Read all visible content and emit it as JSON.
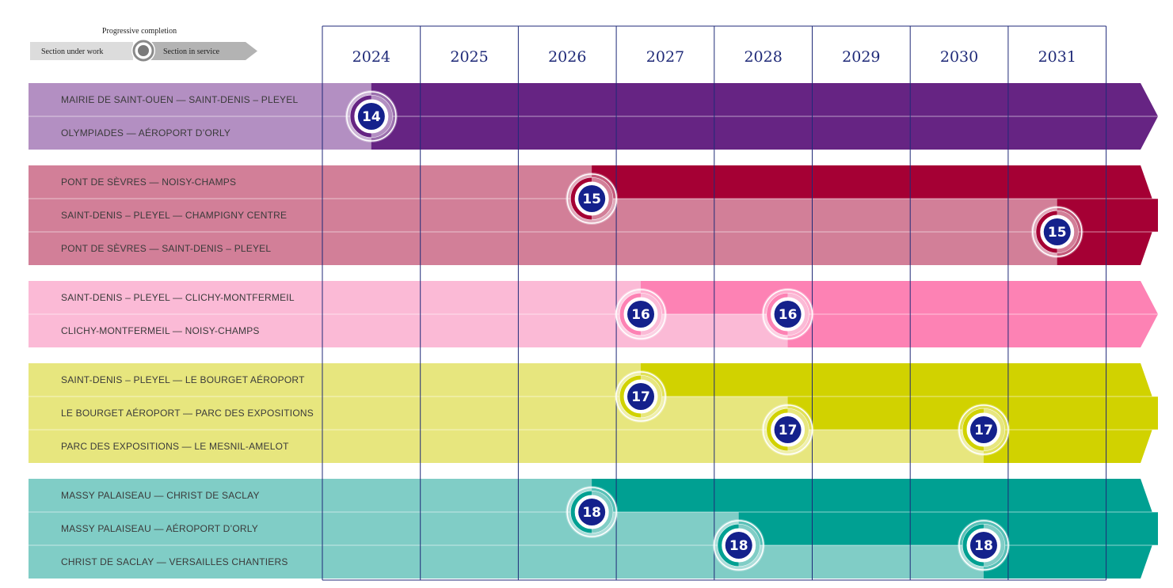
{
  "legend": {
    "title": "Progressive completion",
    "under_work": "Section under work",
    "in_service": "Section in service"
  },
  "chart_data": {
    "type": "table",
    "title": "",
    "years": [
      "2024",
      "2025",
      "2026",
      "2027",
      "2028",
      "2029",
      "2030",
      "2031"
    ],
    "lines": [
      {
        "line": "14",
        "color_light": "#b38fc2",
        "color_dark": "#662483",
        "sections": [
          {
            "label": "MAIRIE DE SAINT-OUEN  —  SAINT-DENIS – PLEYEL",
            "service_year": 2024.0
          },
          {
            "label": "OLYMPIADES  —  AÉROPORT D’ORLY",
            "service_year": 2024.0
          }
        ],
        "markers": [
          {
            "year": 2024.0,
            "rows": [
              0,
              1
            ]
          }
        ]
      },
      {
        "line": "15",
        "color_light": "#d27f98",
        "color_dark": "#a50034",
        "sections": [
          {
            "label": "PONT DE SÈVRES  —  NOISY-CHAMPS",
            "service_year": 2026.25
          },
          {
            "label": "SAINT-DENIS – PLEYEL  — CHAMPIGNY CENTRE",
            "service_year": 2031.0
          },
          {
            "label": "PONT DE SÈVRES  —  SAINT-DENIS – PLEYEL",
            "service_year": 2031.0
          }
        ],
        "markers": [
          {
            "year": 2026.25,
            "rows": [
              0,
              1
            ]
          },
          {
            "year": 2031.0,
            "rows": [
              1,
              2
            ]
          }
        ]
      },
      {
        "line": "16",
        "color_light": "#fbbad6",
        "color_dark": "#fd82b4",
        "sections": [
          {
            "label": "SAINT-DENIS – PLEYEL  —  CLICHY-MONTFERMEIL",
            "service_year": 2026.75
          },
          {
            "label": "CLICHY-MONTFERMEIL  —  NOISY-CHAMPS",
            "service_year": 2028.25
          }
        ],
        "markers": [
          {
            "year": 2026.75,
            "rows": [
              0,
              1
            ]
          },
          {
            "year": 2028.25,
            "rows": [
              0,
              1
            ]
          }
        ]
      },
      {
        "line": "17",
        "color_light": "#e7e67e",
        "color_dark": "#d1d200",
        "sections": [
          {
            "label": "SAINT-DENIS – PLEYEL  —  LE BOURGET AÉROPORT",
            "service_year": 2026.75
          },
          {
            "label": "LE BOURGET AÉROPORT  —  PARC DES EXPOSITIONS",
            "service_year": 2028.25
          },
          {
            "label": "PARC DES EXPOSITIONS  —  LE MESNIL-AMELOT",
            "service_year": 2030.25
          }
        ],
        "markers": [
          {
            "year": 2026.75,
            "rows": [
              0,
              1
            ]
          },
          {
            "year": 2028.25,
            "rows": [
              1,
              2
            ]
          },
          {
            "year": 2030.25,
            "rows": [
              1,
              2
            ]
          }
        ]
      },
      {
        "line": "18",
        "color_light": "#80cdc6",
        "color_dark": "#00a092",
        "sections": [
          {
            "label": "MASSY PALAISEAU  —  CHRIST DE SACLAY",
            "service_year": 2026.25
          },
          {
            "label": "MASSY PALAISEAU  —  AÉROPORT D’ORLY",
            "service_year": 2027.75
          },
          {
            "label": "CHRIST DE SACLAY  —  VERSAILLES CHANTIERS",
            "service_year": 2030.25
          }
        ],
        "markers": [
          {
            "year": 2026.25,
            "rows": [
              0,
              1
            ]
          },
          {
            "year": 2027.75,
            "rows": [
              1,
              2
            ]
          },
          {
            "year": 2030.25,
            "rows": [
              1,
              2
            ]
          }
        ]
      }
    ]
  }
}
